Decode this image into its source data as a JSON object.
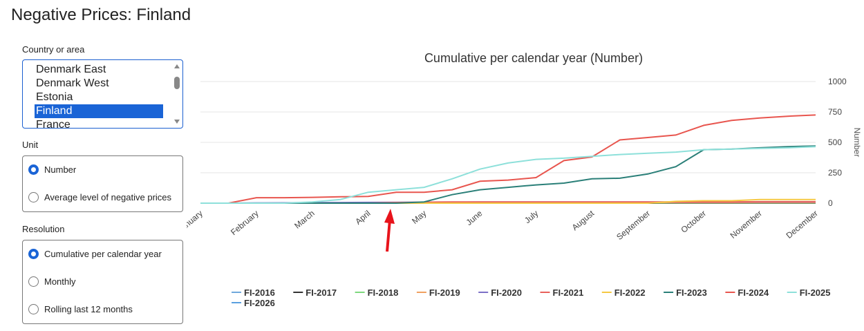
{
  "header": {
    "title": "Negative Prices: Finland"
  },
  "controls": {
    "country": {
      "label": "Country or area",
      "options": [
        "Denmark East",
        "Denmark West",
        "Estonia",
        "Finland",
        "France"
      ],
      "selected": 3
    },
    "unit": {
      "label": "Unit",
      "options": [
        "Number",
        "Average level of negative prices"
      ],
      "selected": 0
    },
    "resolution": {
      "label": "Resolution",
      "options": [
        "Cumulative per calendar year",
        "Monthly",
        "Rolling last 12 months"
      ],
      "selected": 0
    }
  },
  "chart_data": {
    "type": "line",
    "title": "Cumulative per calendar year (Number)",
    "y_label": "Number",
    "categories": [
      "January",
      null,
      "February",
      null,
      "March",
      null,
      "April",
      null,
      "May",
      null,
      "June",
      null,
      "July",
      null,
      "August",
      null,
      "September",
      null,
      "October",
      null,
      "November",
      null,
      "December"
    ],
    "ylim": [
      0,
      1000
    ],
    "yticks": [
      0,
      250,
      500,
      750,
      1000
    ],
    "grid": true,
    "series": [
      {
        "name": "FI-2016",
        "color": "#6fa8dc",
        "values": [
          0,
          0,
          0,
          0,
          0,
          0,
          0,
          0,
          0,
          0,
          0,
          0,
          0,
          0,
          0,
          0,
          0,
          0,
          0,
          0,
          0,
          0,
          0
        ]
      },
      {
        "name": "FI-2017",
        "color": "#333333",
        "values": [
          0,
          0,
          0,
          0,
          0,
          0,
          0,
          0,
          0,
          0,
          0,
          0,
          0,
          0,
          0,
          0,
          0,
          0,
          0,
          0,
          0,
          0,
          0
        ]
      },
      {
        "name": "FI-2018",
        "color": "#7dd87d",
        "values": [
          0,
          0,
          0,
          0,
          0,
          0,
          0,
          0,
          1,
          1,
          2,
          2,
          2,
          2,
          2,
          2,
          2,
          2,
          2,
          2,
          2,
          2,
          2
        ]
      },
      {
        "name": "FI-2019",
        "color": "#f0a060",
        "values": [
          0,
          0,
          0,
          0,
          0,
          0,
          0,
          0,
          2,
          3,
          4,
          4,
          4,
          4,
          5,
          5,
          5,
          5,
          5,
          5,
          5,
          5,
          5
        ]
      },
      {
        "name": "FI-2020",
        "color": "#7b6fc6",
        "values": [
          0,
          0,
          2,
          3,
          4,
          5,
          6,
          7,
          8,
          8,
          9,
          9,
          9,
          9,
          9,
          9,
          9,
          9,
          9,
          9,
          10,
          10,
          10
        ]
      },
      {
        "name": "FI-2021",
        "color": "#e8605a",
        "values": [
          0,
          0,
          0,
          0,
          0,
          0,
          0,
          5,
          8,
          10,
          10,
          10,
          10,
          10,
          10,
          10,
          10,
          10,
          10,
          10,
          12,
          12,
          12
        ]
      },
      {
        "name": "FI-2022",
        "color": "#f5c842",
        "values": [
          0,
          0,
          0,
          0,
          0,
          0,
          0,
          0,
          0,
          0,
          0,
          0,
          0,
          0,
          0,
          0,
          0,
          15,
          20,
          20,
          30,
          30,
          30
        ]
      },
      {
        "name": "FI-2023",
        "color": "#2a7f78",
        "values": [
          0,
          0,
          0,
          0,
          0,
          0,
          0,
          0,
          10,
          70,
          110,
          130,
          150,
          165,
          200,
          205,
          240,
          300,
          440,
          445,
          455,
          465,
          470
        ]
      },
      {
        "name": "FI-2024",
        "color": "#e8554e",
        "values": [
          0,
          0,
          45,
          45,
          48,
          52,
          55,
          90,
          90,
          110,
          180,
          190,
          210,
          350,
          380,
          520,
          540,
          560,
          640,
          680,
          700,
          715,
          725
        ]
      },
      {
        "name": "FI-2025",
        "color": "#8de0da",
        "values": [
          0,
          0,
          0,
          0,
          10,
          30,
          90,
          110,
          130,
          200,
          280,
          330,
          360,
          370,
          385,
          400,
          410,
          420,
          440,
          445,
          450,
          455,
          465
        ]
      },
      {
        "name": "FI-2026",
        "color": "#5aa0e0",
        "values": [
          0,
          null,
          null,
          null,
          null,
          null,
          null,
          null,
          null,
          null,
          null,
          null,
          null,
          null,
          null,
          null,
          null,
          null,
          null,
          null,
          null,
          null,
          null
        ]
      }
    ]
  }
}
